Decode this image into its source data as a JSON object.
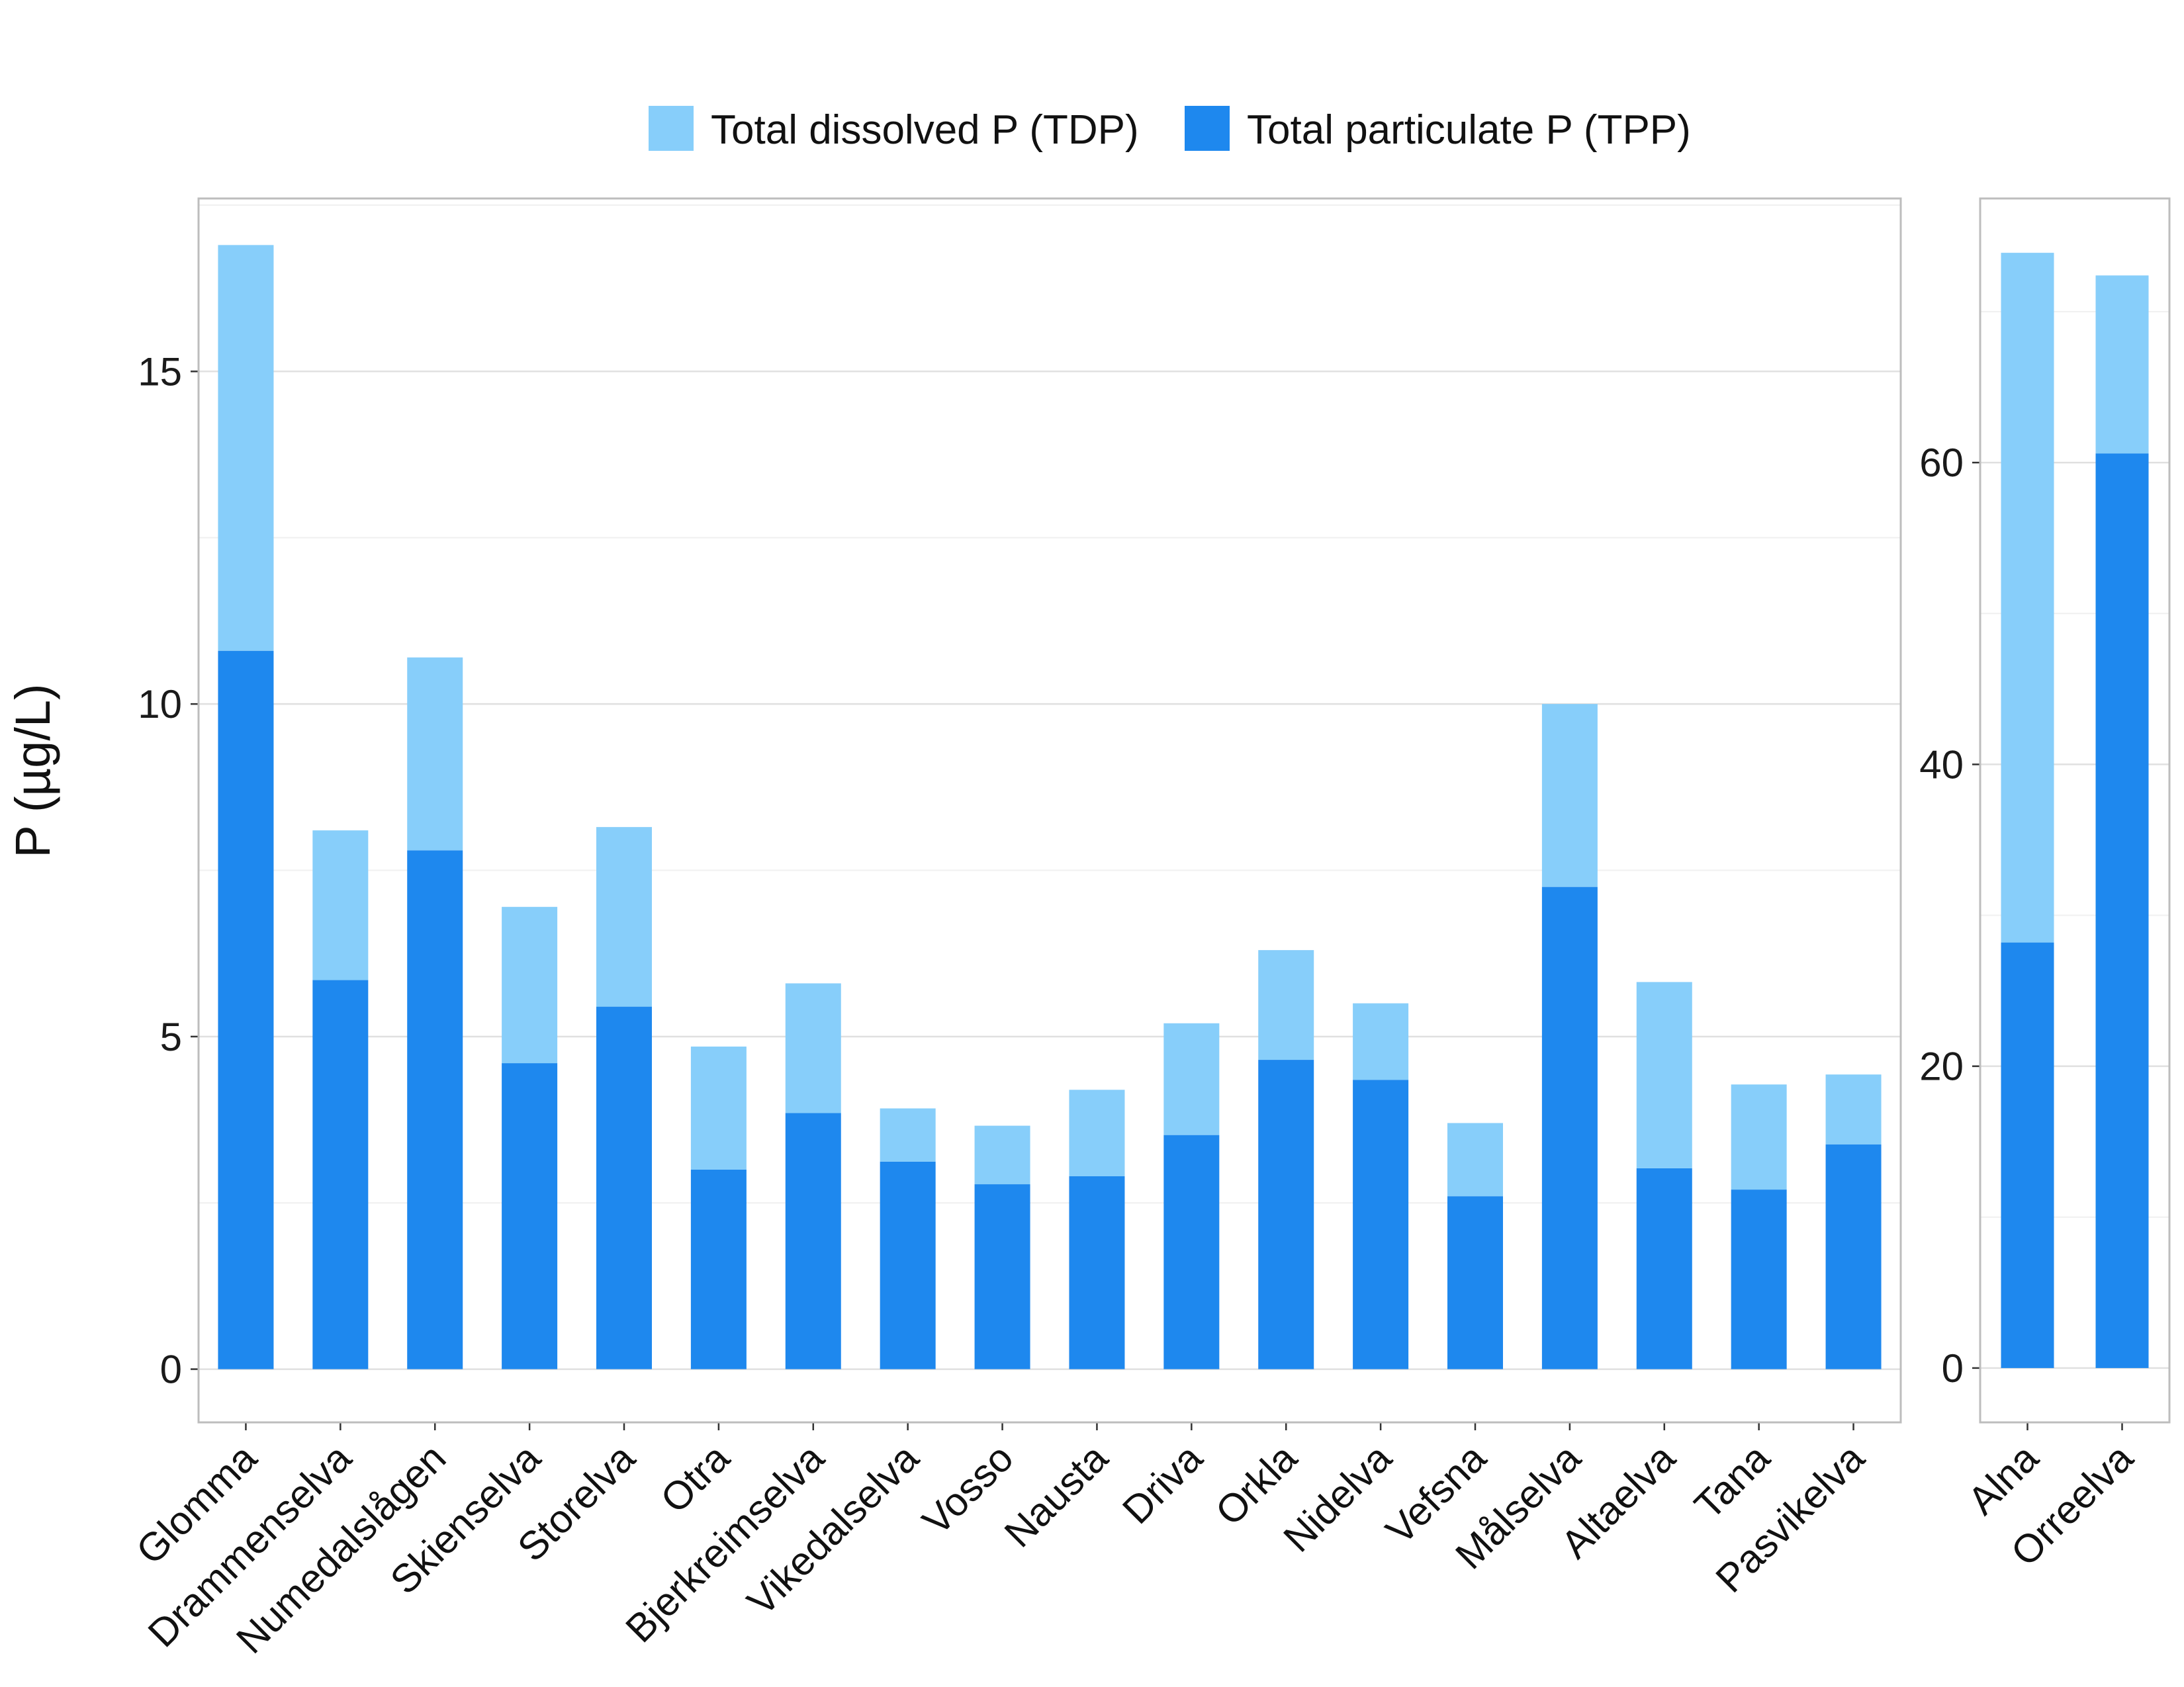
{
  "colors": {
    "tdp": "#87CEFA",
    "tpp": "#1E88EE",
    "grid_major": "#E0E0E0",
    "grid_minor": "#F0F0F0",
    "panel_border": "#BDBDBD"
  },
  "chart_data": {
    "type": "bar",
    "stacked": true,
    "ylabel": "P (µg/L)",
    "legend": {
      "placement": "top",
      "entries": [
        "Total dissolved P (TDP)",
        "Total particulate P (TPP)"
      ]
    },
    "grid": true,
    "panels": [
      {
        "name": "main",
        "categories": [
          "Glomma",
          "Drammenselva",
          "Numedalslågen",
          "Skienselva",
          "Storelva",
          "Otra",
          "Bjerkreimselva",
          "Vikedalselva",
          "Vosso",
          "Nausta",
          "Driva",
          "Orkla",
          "Nidelva",
          "Vefsna",
          "Målselva",
          "Altaelva",
          "Tana",
          "Pasvikelva"
        ],
        "ylim": [
          -0.8,
          17.6
        ],
        "yticks": [
          0,
          5,
          10,
          15
        ],
        "ytick_labels": [
          "0",
          "5",
          "10",
          "15"
        ],
        "series": [
          {
            "name": "Total particulate P (TPP)",
            "values": [
              10.8,
              5.85,
              7.8,
              4.6,
              5.45,
              3.0,
              3.85,
              3.12,
              2.78,
              2.9,
              3.52,
              4.65,
              4.35,
              2.6,
              7.25,
              3.02,
              2.7,
              3.38
            ]
          },
          {
            "name": "Total dissolved P (TDP)",
            "values": [
              6.1,
              2.25,
              2.9,
              2.35,
              2.7,
              1.85,
              1.95,
              0.8,
              0.88,
              1.3,
              1.68,
              1.65,
              1.15,
              1.1,
              2.75,
              2.8,
              1.58,
              1.05
            ]
          }
        ]
      },
      {
        "name": "outliers",
        "categories": [
          "Alna",
          "Orreelva"
        ],
        "ylim": [
          -3.6,
          77.5
        ],
        "yticks": [
          0,
          20,
          40,
          60
        ],
        "ytick_labels": [
          "0",
          "20",
          "40",
          "60"
        ],
        "series": [
          {
            "name": "Total particulate P (TPP)",
            "values": [
              28.2,
              60.6
            ]
          },
          {
            "name": "Total dissolved P (TDP)",
            "values": [
              45.7,
              11.8
            ]
          }
        ]
      }
    ]
  }
}
